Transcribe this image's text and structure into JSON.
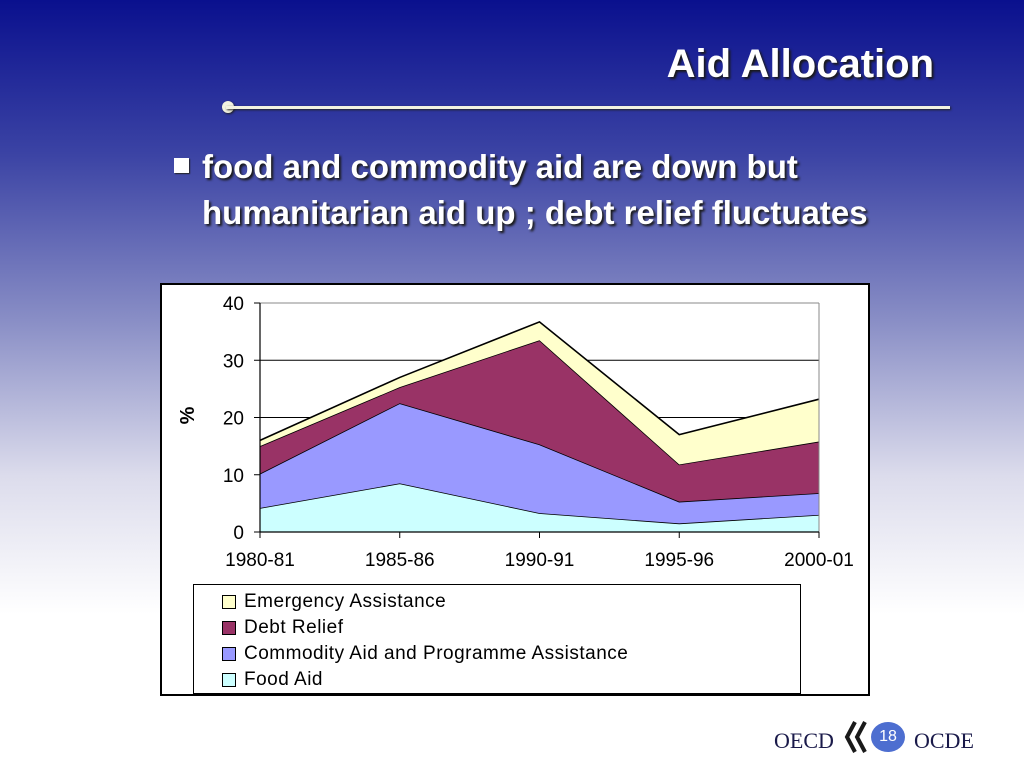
{
  "slide": {
    "title": "Aid Allocation",
    "bullet": "food and commodity aid are down but humanitarian aid up ; debt relief fluctuates",
    "page_number": "18"
  },
  "footer": {
    "left_text": "OECD",
    "right_text": "OCDE"
  },
  "colors": {
    "emergency": "#ffffcc",
    "debt": "#993366",
    "commodity": "#9999ff",
    "food": "#ccffff"
  },
  "chart_data": {
    "type": "area",
    "stacked": true,
    "categories": [
      "1980-81",
      "1985-86",
      "1990-91",
      "1995-96",
      "2000-01"
    ],
    "ylabel": "%",
    "xlabel": "",
    "ylim": [
      0,
      40
    ],
    "yticks": [
      0,
      10,
      20,
      30,
      40
    ],
    "grid": true,
    "legend_position": "bottom",
    "series": [
      {
        "name": "Food Aid",
        "values": [
          4.2,
          8.5,
          3.3,
          1.5,
          3.0
        ]
      },
      {
        "name": "Commodity Aid and Programme Assistance",
        "values": [
          6.0,
          14.0,
          12.0,
          3.8,
          3.8
        ]
      },
      {
        "name": "Debt Relief",
        "values": [
          4.8,
          2.8,
          18.2,
          6.5,
          9.0
        ]
      },
      {
        "name": "Emergency Assistance",
        "values": [
          1.0,
          1.7,
          3.2,
          5.2,
          7.4
        ]
      }
    ],
    "legend_order": [
      "Emergency Assistance",
      "Debt Relief",
      "Commodity Aid and Programme Assistance",
      "Food Aid"
    ]
  }
}
